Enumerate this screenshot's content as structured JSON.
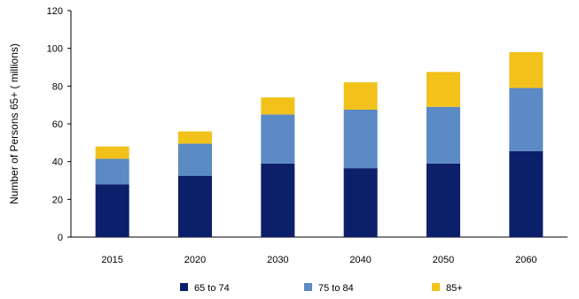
{
  "chart_data": {
    "type": "bar",
    "stacked": true,
    "title": "",
    "xlabel": "",
    "ylabel": "Number of Persons 65+ ( millions)",
    "ylim": [
      0,
      120
    ],
    "yticks": [
      0,
      20,
      40,
      60,
      80,
      100,
      120
    ],
    "grid": false,
    "legend_position": "bottom",
    "categories": [
      "2015",
      "2020",
      "2030",
      "2040",
      "2050",
      "2060"
    ],
    "series": [
      {
        "name": "65 to 74",
        "color": "#0b1f6b",
        "values": [
          28,
          32.5,
          39,
          36.5,
          39,
          45.5
        ]
      },
      {
        "name": "75 to 84",
        "color": "#5b8ac5",
        "values": [
          13.5,
          17,
          26,
          31,
          30,
          33.5
        ]
      },
      {
        "name": "85+",
        "color": "#f2c21b",
        "values": [
          6.5,
          6.5,
          9,
          14.5,
          18.5,
          19
        ]
      }
    ]
  }
}
